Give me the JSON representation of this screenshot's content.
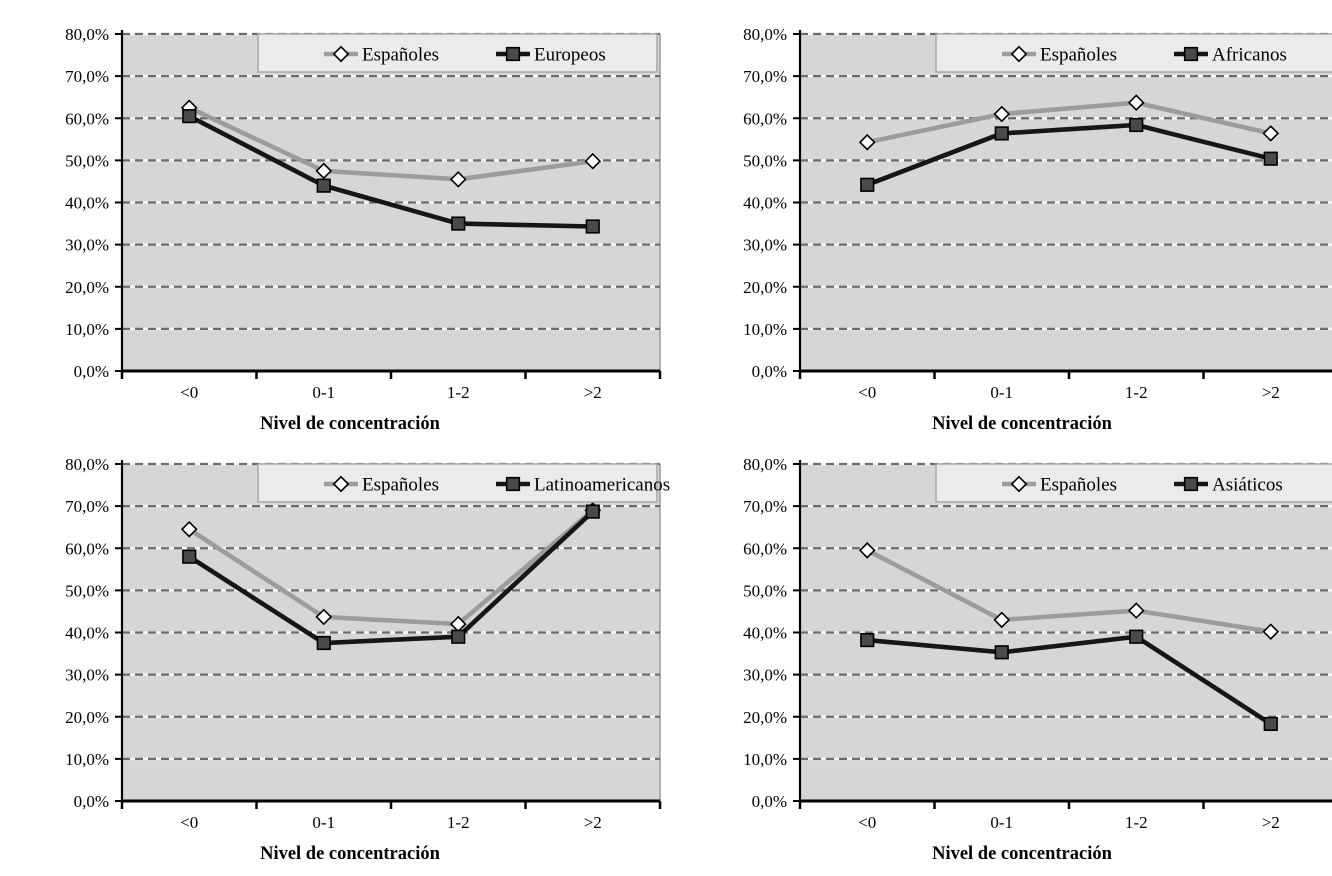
{
  "page": {
    "background": "#ffffff",
    "layout": "2x2-grid-of-line-charts"
  },
  "styles": {
    "plot_bg": "#d6d6d6",
    "plot_right_border": "#9a9a9a",
    "grid_dash_color": "#6b6b6b",
    "grid_gap_color": "#f7f7f7",
    "axis_color": "#000000",
    "legend_bg": "#ebebeb",
    "legend_border": "#a8a8a8",
    "series1_color": "#9c9c9c",
    "series2_color": "#161616",
    "diamond_fill": "#ffffff",
    "square_fill": "#4a4a4a",
    "marker_stroke": "#000000"
  },
  "chart_data": [
    {
      "id": "espanoles-vs-europeos",
      "type": "line",
      "title": "",
      "xlabel": "Nivel de concentración",
      "ylabel": "",
      "categories": [
        "<0",
        "0-1",
        "1-2",
        ">2"
      ],
      "ylim": [
        0,
        80
      ],
      "ytick_step": 10,
      "ytick_labels": [
        "0,0%",
        "10,0%",
        "20,0%",
        "30,0%",
        "40,0%",
        "50,0%",
        "60,0%",
        "70,0%",
        "80,0%"
      ],
      "grid": "horizontal-dashed",
      "legend_position": "top-inside",
      "series": [
        {
          "name": "Españoles",
          "marker": "diamond",
          "values": [
            62.5,
            47.5,
            45.5,
            49.8
          ]
        },
        {
          "name": "Europeos",
          "marker": "square",
          "values": [
            60.5,
            44.0,
            35.0,
            34.3
          ]
        }
      ]
    },
    {
      "id": "espanoles-vs-africanos",
      "type": "line",
      "title": "",
      "xlabel": "Nivel de concentración",
      "ylabel": "",
      "categories": [
        "<0",
        "0-1",
        "1-2",
        ">2"
      ],
      "ylim": [
        0,
        80
      ],
      "ytick_step": 10,
      "ytick_labels": [
        "0,0%",
        "10,0%",
        "20,0%",
        "30,0%",
        "40,0%",
        "50,0%",
        "60,0%",
        "70,0%",
        "80,0%"
      ],
      "grid": "horizontal-dashed",
      "legend_position": "top-inside",
      "series": [
        {
          "name": "Españoles",
          "marker": "diamond",
          "values": [
            54.3,
            61.0,
            63.7,
            56.4
          ]
        },
        {
          "name": "Africanos",
          "marker": "square",
          "values": [
            44.2,
            56.4,
            58.4,
            50.4
          ]
        }
      ]
    },
    {
      "id": "espanoles-vs-latinoamericanos",
      "type": "line",
      "title": "",
      "xlabel": "Nivel de concentración",
      "ylabel": "",
      "categories": [
        "<0",
        "0-1",
        "1-2",
        ">2"
      ],
      "ylim": [
        0,
        80
      ],
      "ytick_step": 10,
      "ytick_labels": [
        "0,0%",
        "10,0%",
        "20,0%",
        "30,0%",
        "40,0%",
        "50,0%",
        "60,0%",
        "70,0%",
        "80,0%"
      ],
      "grid": "horizontal-dashed",
      "legend_position": "top-inside",
      "series": [
        {
          "name": "Españoles",
          "marker": "diamond",
          "values": [
            64.5,
            43.7,
            42.0,
            69.0
          ]
        },
        {
          "name": "Latinoamericanos",
          "marker": "square",
          "values": [
            58.0,
            37.5,
            39.0,
            68.7
          ]
        }
      ]
    },
    {
      "id": "espanoles-vs-asiaticos",
      "type": "line",
      "title": "",
      "xlabel": "Nivel de concentración",
      "ylabel": "",
      "categories": [
        "<0",
        "0-1",
        "1-2",
        ">2"
      ],
      "ylim": [
        0,
        80
      ],
      "ytick_step": 10,
      "ytick_labels": [
        "0,0%",
        "10,0%",
        "20,0%",
        "30,0%",
        "40,0%",
        "50,0%",
        "60,0%",
        "70,0%",
        "80,0%"
      ],
      "grid": "horizontal-dashed",
      "legend_position": "top-inside",
      "series": [
        {
          "name": "Españoles",
          "marker": "diamond",
          "values": [
            59.5,
            43.0,
            45.2,
            40.2
          ]
        },
        {
          "name": "Asiáticos",
          "marker": "square",
          "values": [
            38.2,
            35.3,
            39.0,
            18.3
          ]
        }
      ]
    }
  ]
}
